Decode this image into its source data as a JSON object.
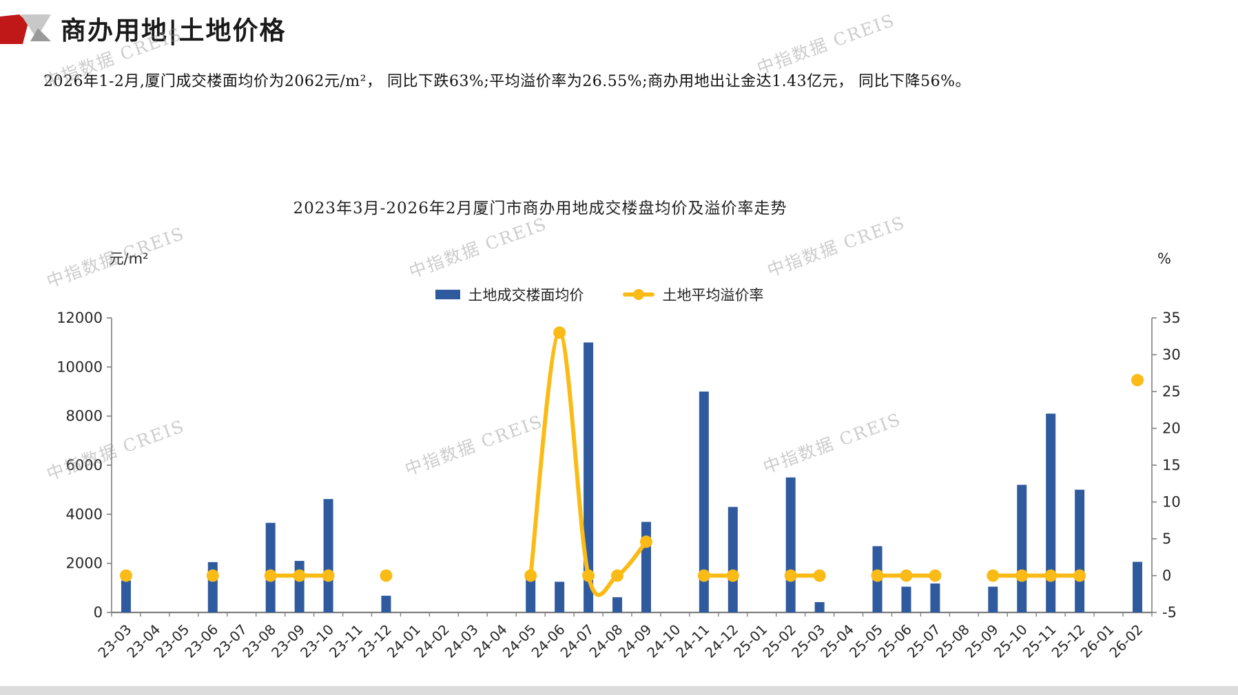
{
  "header": {
    "title": "商办用地|土地价格"
  },
  "subtitle": "2026年1-2月,厦门成交楼面均价为2062元/m²， 同比下跌63%;平均溢价率为26.55%;商办用地出让金达1.43亿元， 同比下降56%。",
  "watermark": "中指数据 CREIS",
  "colors": {
    "bar": "#2F5B9E",
    "line": "#FBBB16",
    "axis": "#7F7F7F",
    "text": "#222222",
    "logo_red": "#C01818",
    "logo_gray_light": "#C8C8C8",
    "logo_gray_dark": "#9A9A9A"
  },
  "chart_data": {
    "type": "bar",
    "title": "2023年3月-2026年2月厦门市商办用地成交楼盘均价及溢价率走势",
    "legend_position": "top",
    "grid": false,
    "left_axis": {
      "title": "元/m²",
      "min": 0,
      "max": 12000,
      "step": 2000,
      "ticks": [
        "0",
        "2000",
        "4000",
        "6000",
        "8000",
        "10000",
        "12000"
      ]
    },
    "right_axis": {
      "title": "%",
      "min": -5,
      "max": 35,
      "step": 5,
      "ticks": [
        "-5",
        "0",
        "5",
        "10",
        "15",
        "20",
        "25",
        "30",
        "35"
      ]
    },
    "categories": [
      "23-03",
      "23-04",
      "23-05",
      "23-06",
      "23-07",
      "23-08",
      "23-09",
      "23-10",
      "23-11",
      "23-12",
      "24-01",
      "24-02",
      "24-03",
      "24-04",
      "24-05",
      "24-06",
      "24-07",
      "24-08",
      "24-09",
      "24-10",
      "24-11",
      "24-12",
      "25-01",
      "25-02",
      "25-03",
      "25-04",
      "25-05",
      "25-06",
      "25-07",
      "25-08",
      "25-09",
      "25-10",
      "25-11",
      "25-12",
      "26-01",
      "26-02"
    ],
    "series": [
      {
        "name": "土地成交楼面均价",
        "type": "bar",
        "axis": "left",
        "values": [
          1300,
          null,
          null,
          2050,
          null,
          3650,
          2100,
          4620,
          null,
          680,
          null,
          null,
          null,
          null,
          1380,
          1250,
          11000,
          620,
          3690,
          null,
          9000,
          4300,
          null,
          5500,
          420,
          null,
          2700,
          1050,
          1180,
          null,
          1050,
          5200,
          8100,
          5000,
          null,
          2062
        ]
      },
      {
        "name": "土地平均溢价率",
        "type": "line",
        "axis": "right",
        "values": [
          0,
          null,
          null,
          0,
          null,
          0,
          0,
          0,
          null,
          0,
          null,
          null,
          null,
          null,
          0,
          33,
          0,
          0,
          4.6,
          null,
          0,
          0,
          null,
          0,
          0,
          null,
          0,
          0,
          0,
          null,
          0,
          0,
          0,
          0,
          null,
          26.55
        ]
      }
    ]
  }
}
